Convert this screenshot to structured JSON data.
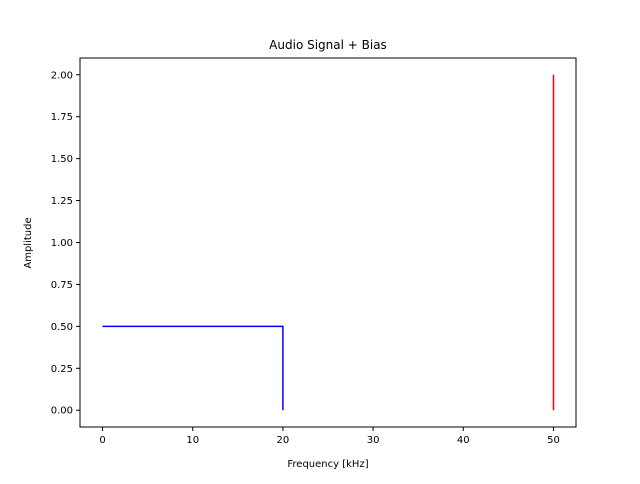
{
  "chart_data": {
    "type": "line",
    "title": "Audio Signal + Bias",
    "xlabel": "Frequency [kHz]",
    "ylabel": "Amplitude",
    "xlim": [
      -2.5,
      52.5
    ],
    "ylim": [
      -0.1,
      2.1
    ],
    "xticks": [
      0,
      10,
      20,
      30,
      40,
      50
    ],
    "xtick_labels": [
      "0",
      "10",
      "20",
      "30",
      "40",
      "50"
    ],
    "yticks": [
      0,
      0.25,
      0.5,
      0.75,
      1,
      1.25,
      1.5,
      1.75,
      2
    ],
    "ytick_labels": [
      "0.00",
      "0.25",
      "0.50",
      "0.75",
      "1.00",
      "1.25",
      "1.50",
      "1.75",
      "2.00"
    ],
    "grid": false,
    "series": [
      {
        "color": "#0000ff",
        "x": [
          0,
          20,
          20
        ],
        "y": [
          0.5,
          0.5,
          0
        ]
      },
      {
        "color": "#ff0000",
        "x": [
          50,
          50
        ],
        "y": [
          0,
          2
        ]
      }
    ]
  }
}
